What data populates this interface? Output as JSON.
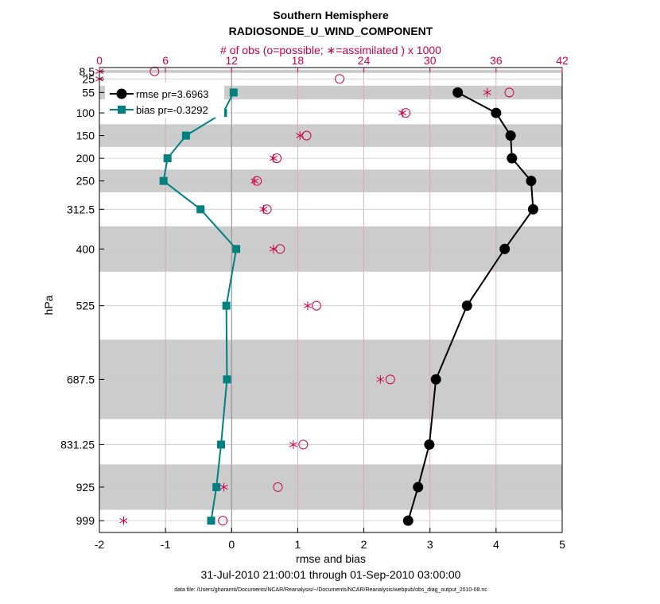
{
  "chart_data": {
    "type": "line",
    "title": "Southern Hemisphere",
    "subtitle": "RADIOSONDE_U_WIND_COMPONENT",
    "top_axis_label": "# of obs (o=possible; ∗=assimilated ) x 1000",
    "xlabel": "rmse and bias",
    "ylabel": "hPa",
    "date_range": "31-Jul-2010 21:00:01 through 01-Sep-2010 03:00:00",
    "footnote": "data file: /Users/gharamti/Documents/NCAR/Reanalysis/~/Documents/NCAR/Reanalysis/webpub/obs_diag_output_2010-08.nc",
    "xlim": [
      -2,
      5
    ],
    "x_ticks": [
      "-2",
      "-1",
      "0",
      "1",
      "2",
      "3",
      "4",
      "5"
    ],
    "top_xlim": [
      0,
      42
    ],
    "top_ticks": [
      "0",
      "6",
      "12",
      "18",
      "24",
      "30",
      "36",
      "42"
    ],
    "ylim_hpa": [
      1025,
      0
    ],
    "y_scale": "linear, inverted",
    "levels": [
      8.5,
      25,
      55,
      100,
      150,
      200,
      250,
      312.5,
      400,
      525,
      687.5,
      831.25,
      925,
      999
    ],
    "level_labels": [
      "8.5",
      "25",
      "55",
      "100",
      "150",
      "200",
      "250",
      "312.5",
      "400",
      "525",
      "687.5",
      "831.25",
      "925",
      "999"
    ],
    "bands_hpa": [
      [
        5,
        12
      ],
      [
        40,
        70
      ],
      [
        125,
        175
      ],
      [
        225,
        275
      ],
      [
        350,
        450
      ],
      [
        600,
        775
      ],
      [
        875,
        975
      ]
    ],
    "legend": [
      "rmse pr=3.6963",
      "bias pr=-0.3292"
    ],
    "legend_position": "top-left",
    "series": [
      {
        "name": "rmse pr=3.6963",
        "color": "#000000",
        "marker": "circle",
        "levels": [
          55,
          100,
          150,
          200,
          250,
          312.5,
          400,
          525,
          687.5,
          831.25,
          925,
          999
        ],
        "values": [
          3.42,
          4.0,
          4.22,
          4.24,
          4.53,
          4.56,
          4.13,
          3.56,
          3.09,
          2.99,
          2.82,
          2.67
        ]
      },
      {
        "name": "bias pr=-0.3292",
        "color": "#008080",
        "marker": "square",
        "levels": [
          55,
          100,
          150,
          200,
          250,
          312.5,
          400,
          525,
          687.5,
          831.25,
          925,
          999
        ],
        "values": [
          0.03,
          -0.13,
          -0.69,
          -0.97,
          -1.03,
          -0.47,
          0.07,
          -0.08,
          -0.07,
          -0.16,
          -0.23,
          -0.31
        ]
      }
    ],
    "obs_possible_k": {
      "color": "#cc0044",
      "levels": [
        8.5,
        25,
        55,
        100,
        150,
        200,
        250,
        312.5,
        400,
        525,
        687.5,
        831.25,
        925,
        999
      ],
      "values": [
        5.0,
        21.8,
        37.2,
        27.8,
        18.8,
        16.1,
        14.3,
        15.2,
        16.4,
        19.7,
        26.4,
        18.5,
        16.2,
        11.2
      ]
    },
    "obs_assimilated_k": {
      "color": "#cc0044",
      "levels": [
        8.5,
        25,
        55,
        100,
        150,
        200,
        250,
        312.5,
        400,
        525,
        687.5,
        831.25,
        925,
        999
      ],
      "values": [
        0.0,
        0.0,
        35.2,
        27.5,
        18.2,
        15.8,
        14.1,
        14.9,
        15.8,
        18.9,
        25.5,
        17.6,
        11.3,
        2.2
      ]
    },
    "colors": {
      "axis": "#000000",
      "top_axis": "#cc0044",
      "grid": "#c8c8c8",
      "vgrid": "#d9a0b4",
      "band": "#cccccc"
    }
  }
}
